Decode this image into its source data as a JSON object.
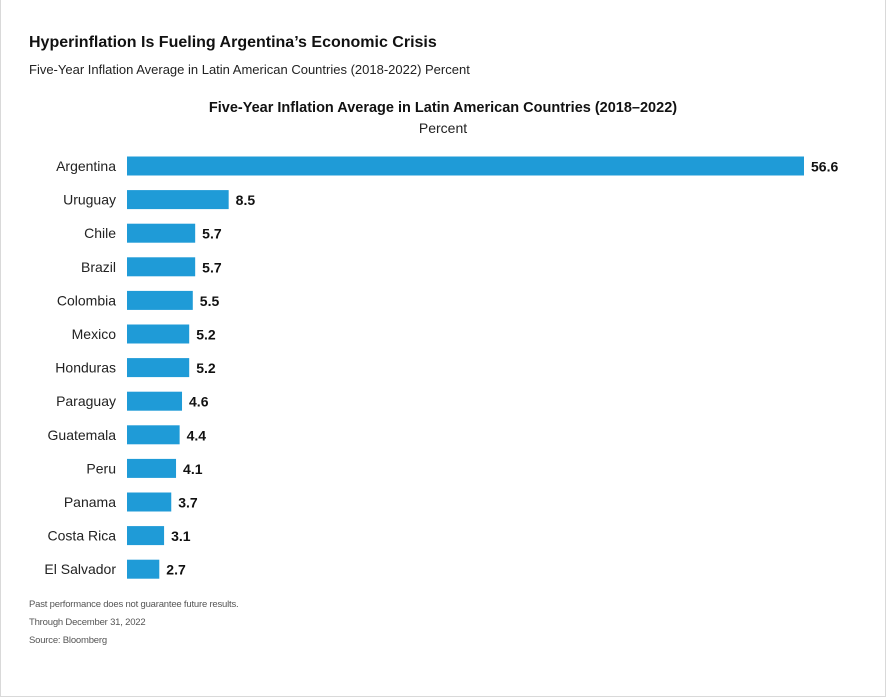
{
  "header": {
    "title": "Hyperinflation Is Fueling Argentina’s Economic Crisis",
    "subtitle": "Five-Year Inflation Average in Latin American Countries (2018-2022) Percent"
  },
  "chart_data": {
    "type": "bar",
    "orientation": "horizontal",
    "title": "Five-Year Inflation Average in Latin American Countries (2018–2022)",
    "subtitle": "Percent",
    "categories": [
      "Argentina",
      "Uruguay",
      "Chile",
      "Brazil",
      "Colombia",
      "Mexico",
      "Honduras",
      "Paraguay",
      "Guatemala",
      "Peru",
      "Panama",
      "Costa Rica",
      "El Salvador"
    ],
    "values": [
      56.6,
      8.5,
      5.7,
      5.7,
      5.5,
      5.2,
      5.2,
      4.6,
      4.4,
      4.1,
      3.7,
      3.1,
      2.7
    ],
    "value_labels": [
      "56.6",
      "8.5",
      "5.7",
      "5.7",
      "5.5",
      "5.2",
      "5.2",
      "4.6",
      "4.4",
      "4.1",
      "3.7",
      "3.1",
      "2.7"
    ],
    "xlim": [
      0,
      56.6
    ],
    "grid": false,
    "legend": "none",
    "bar_color": "#1f9bd7"
  },
  "footnotes": {
    "disclaimer": "Past performance does not guarantee future results.",
    "through": "Through December 31, 2022",
    "source": "Source: Bloomberg"
  }
}
